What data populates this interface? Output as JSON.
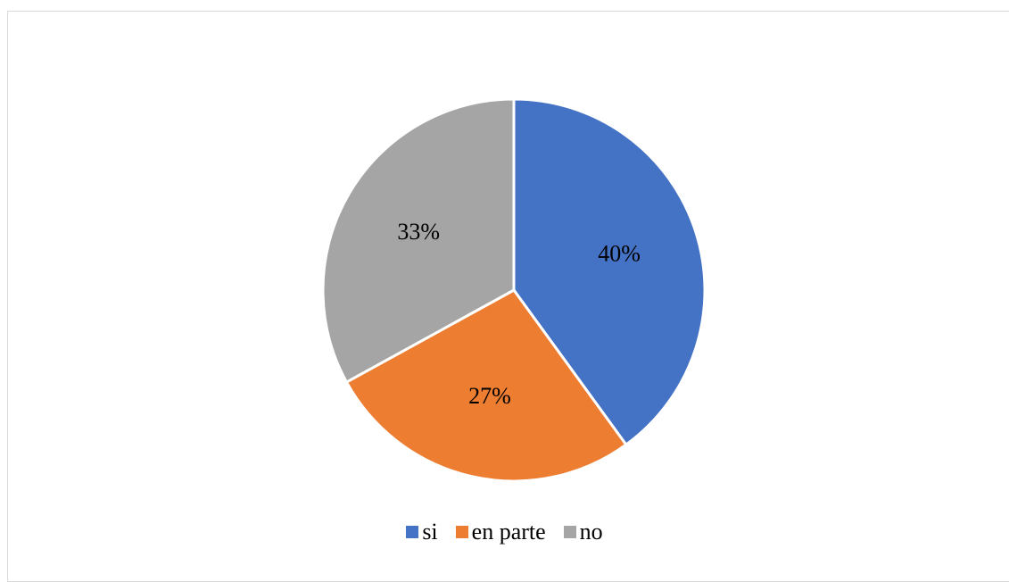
{
  "chart_data": {
    "type": "pie",
    "categories": [
      "si",
      "en parte",
      "no"
    ],
    "values": [
      40,
      27,
      33
    ],
    "labels": [
      "40%",
      "27%",
      "33%"
    ],
    "colors": [
      "#4472C4",
      "#ED7D31",
      "#A5A5A5"
    ],
    "start_angle": "12 o'clock, clockwise",
    "legend": "bottom"
  }
}
